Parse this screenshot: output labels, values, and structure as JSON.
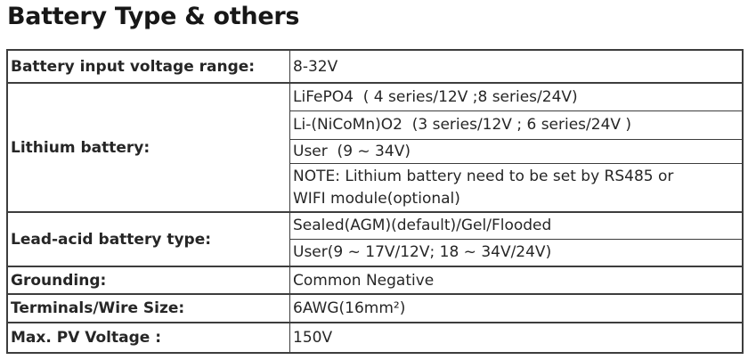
{
  "page_title": "Battery Type & others",
  "colors": {
    "background": "#ffffff",
    "border": "#3d3d3d",
    "title_text": "#171717",
    "body_text": "#262626"
  },
  "table": {
    "rows": [
      {
        "label": "Battery input voltage range:",
        "values": [
          "8-32V"
        ]
      },
      {
        "label": "Lithium battery:",
        "values": [
          "LiFePO4  ( 4 series/12V ;8 series/24V)",
          "Li-(NiCoMn)O2  (3 series/12V ; 6 series/24V )",
          "User  (9 ~ 34V)",
          "NOTE: Lithium battery need to be set by RS485 or\nWIFI module(optional)"
        ]
      },
      {
        "label": "Lead-acid battery type:",
        "values": [
          "Sealed(AGM)(default)/Gel/Flooded",
          "User(9 ~ 17V/12V; 18 ~ 34V/24V)"
        ]
      },
      {
        "label": "Grounding:",
        "values": [
          "Common Negative"
        ]
      },
      {
        "label": "Terminals/Wire Size:",
        "values": [
          "6AWG(16mm²)"
        ]
      },
      {
        "label": "Max. PV Voltage :",
        "values": [
          "150V"
        ]
      }
    ]
  }
}
